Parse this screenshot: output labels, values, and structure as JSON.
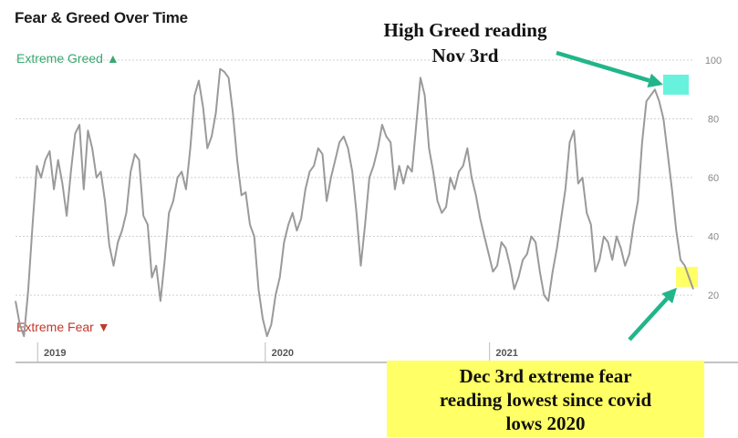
{
  "chart_data": {
    "type": "line",
    "title": "Fear & Greed Over Time",
    "zone_labels": {
      "greed": "Extreme Greed ▲",
      "fear": "Extreme Fear ▼"
    },
    "x_ticks": [
      "2019",
      "2020",
      "2021"
    ],
    "y_ticks": [
      20,
      40,
      60,
      80,
      100
    ],
    "ylim": [
      0,
      100
    ],
    "grid": true,
    "series": [
      {
        "x": [
          0,
          1,
          2,
          3,
          4,
          5,
          6,
          7,
          8,
          9,
          10,
          11,
          12,
          13,
          14,
          15,
          16,
          17,
          18,
          19,
          20,
          21,
          22,
          23,
          24,
          25,
          26,
          27,
          28,
          29,
          30,
          31,
          32,
          33,
          34,
          35,
          36,
          37,
          38,
          39,
          40,
          41,
          42,
          43,
          44,
          45,
          46,
          47,
          48,
          49,
          50,
          51,
          52,
          53,
          54,
          55,
          56,
          57,
          58,
          59,
          60,
          61,
          62,
          63,
          64,
          65,
          66,
          67,
          68,
          69,
          70,
          71,
          72,
          73,
          74,
          75,
          76,
          77,
          78,
          79,
          80,
          81,
          82,
          83,
          84,
          85,
          86,
          87,
          88,
          89,
          90,
          91,
          92,
          93,
          94,
          95,
          96,
          97,
          98,
          99,
          100,
          101,
          102,
          103,
          104,
          105,
          106,
          107,
          108,
          109,
          110,
          111,
          112,
          113,
          114,
          115,
          116,
          117,
          118,
          119,
          120,
          121,
          122,
          123,
          124,
          125,
          126,
          127,
          128,
          129,
          130,
          131,
          132,
          133,
          134,
          135,
          136,
          137,
          138,
          139,
          140,
          141,
          142,
          143,
          144,
          145,
          146,
          147,
          148,
          149,
          150,
          151,
          152,
          153,
          154,
          155,
          156,
          157,
          158,
          159
        ],
        "y": [
          18,
          10,
          6,
          22,
          44,
          64,
          60,
          66,
          69,
          56,
          66,
          58,
          47,
          62,
          75,
          78,
          56,
          76,
          70,
          60,
          62,
          52,
          37,
          30,
          38,
          42,
          48,
          62,
          68,
          66,
          47,
          44,
          26,
          30,
          18,
          32,
          48,
          52,
          60,
          62,
          56,
          70,
          88,
          93,
          84,
          70,
          74,
          82,
          97,
          96,
          94,
          82,
          66,
          54,
          55,
          44,
          40,
          22,
          12,
          6,
          10,
          20,
          26,
          38,
          44,
          48,
          42,
          46,
          56,
          62,
          64,
          70,
          68,
          52,
          60,
          66,
          72,
          74,
          70,
          62,
          48,
          30,
          44,
          60,
          64,
          70,
          78,
          74,
          72,
          56,
          64,
          58,
          64,
          62,
          78,
          94,
          88,
          70,
          62,
          52,
          48,
          50,
          60,
          56,
          62,
          64,
          70,
          60,
          54,
          46,
          40,
          34,
          28,
          30,
          38,
          36,
          30,
          22,
          26,
          32,
          34,
          40,
          38,
          28,
          20,
          18,
          28,
          36,
          46,
          56,
          72,
          76,
          58,
          60,
          48,
          44,
          28,
          32,
          40,
          38,
          32,
          40,
          36,
          30,
          34,
          44,
          52,
          72,
          86,
          88,
          90,
          86,
          80,
          68,
          56,
          42,
          32,
          30,
          26,
          22
        ]
      }
    ],
    "annotations": [
      {
        "text_lines": [
          "High Greed reading",
          "Nov 3rd"
        ]
      },
      {
        "text_lines": [
          "Dec 3rd extreme fear",
          "reading lowest since covid",
          "lows 2020"
        ]
      }
    ],
    "colors": {
      "line": "#9a9a9a",
      "greed": "#3aa870",
      "fear": "#c0392b",
      "arrow": "#22b58a",
      "highlight_greed": "#66f2dd",
      "highlight_fear": "#ffff66",
      "grid": "#cfcfcf"
    }
  }
}
